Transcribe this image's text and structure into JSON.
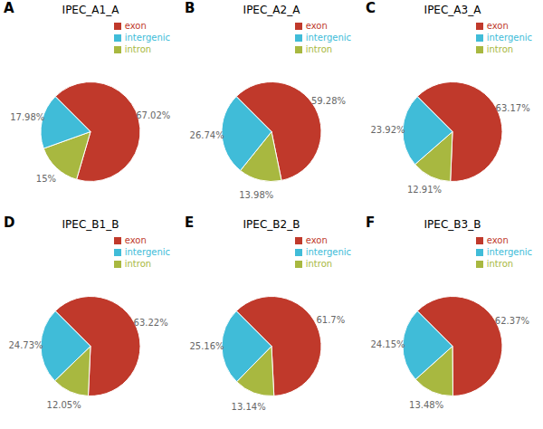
{
  "chart_data": [
    {
      "type": "pie",
      "title": "IPEC_A1_A",
      "annotations": [
        "A"
      ],
      "categories": [
        "exon",
        "intron",
        "intergenic"
      ],
      "values": [
        67.02,
        15.0,
        17.98
      ],
      "value_labels": [
        "67.02%",
        "15%",
        "17.98%"
      ],
      "colors": [
        "#c0392b",
        "#a8b840",
        "#40bcd8"
      ],
      "legend": "upper right",
      "data_labels": true
    },
    {
      "type": "pie",
      "title": "IPEC_A2_A",
      "annotations": [
        "B"
      ],
      "categories": [
        "exon",
        "intron",
        "intergenic"
      ],
      "values": [
        59.28,
        13.98,
        26.74
      ],
      "value_labels": [
        "59.28%",
        "13.98%",
        "26.74%"
      ],
      "colors": [
        "#c0392b",
        "#a8b840",
        "#40bcd8"
      ],
      "legend": "upper right",
      "data_labels": true
    },
    {
      "type": "pie",
      "title": "IPEC_A3_A",
      "annotations": [
        "C"
      ],
      "categories": [
        "exon",
        "intron",
        "intergenic"
      ],
      "values": [
        63.17,
        12.91,
        23.92
      ],
      "value_labels": [
        "63.17%",
        "12.91%",
        "23.92%"
      ],
      "colors": [
        "#c0392b",
        "#a8b840",
        "#40bcd8"
      ],
      "legend": "upper right",
      "data_labels": true
    },
    {
      "type": "pie",
      "title": "IPEC_B1_B",
      "annotations": [
        "D"
      ],
      "categories": [
        "exon",
        "intron",
        "intergenic"
      ],
      "values": [
        63.22,
        12.05,
        24.73
      ],
      "value_labels": [
        "63.22%",
        "12.05%",
        "24.73%"
      ],
      "colors": [
        "#c0392b",
        "#a8b840",
        "#40bcd8"
      ],
      "legend": "upper right",
      "data_labels": true
    },
    {
      "type": "pie",
      "title": "IPEC_B2_B",
      "annotations": [
        "E"
      ],
      "categories": [
        "exon",
        "intron",
        "intergenic"
      ],
      "values": [
        61.7,
        13.14,
        25.16
      ],
      "value_labels": [
        "61.7%",
        "13.14%",
        "25.16%"
      ],
      "colors": [
        "#c0392b",
        "#a8b840",
        "#40bcd8"
      ],
      "legend": "upper right",
      "data_labels": true
    },
    {
      "type": "pie",
      "title": "IPEC_B3_B",
      "annotations": [
        "F"
      ],
      "categories": [
        "exon",
        "intron",
        "intergenic"
      ],
      "values": [
        62.37,
        13.48,
        24.15
      ],
      "value_labels": [
        "62.37%",
        "13.48%",
        "24.15%"
      ],
      "colors": [
        "#c0392b",
        "#a8b840",
        "#40bcd8"
      ],
      "legend": "upper right",
      "data_labels": true
    }
  ]
}
